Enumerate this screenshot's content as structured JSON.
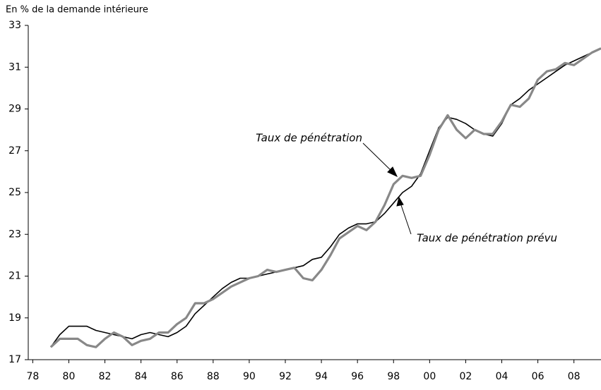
{
  "chart_data": {
    "type": "line",
    "ylabel": "En % de la demande intérieure",
    "x": [
      1979,
      1979.5,
      1980,
      1980.5,
      1981,
      1981.5,
      1982,
      1982.5,
      1983,
      1983.5,
      1984,
      1984.5,
      1985,
      1985.5,
      1986,
      1986.5,
      1987,
      1987.5,
      1988,
      1988.5,
      1989,
      1989.5,
      1990,
      1990.5,
      1991,
      1991.5,
      1992,
      1992.5,
      1993,
      1993.5,
      1994,
      1994.5,
      1995,
      1995.5,
      1996,
      1996.5,
      1997,
      1997.5,
      1998,
      1998.5,
      1999,
      1999.5,
      2000,
      2000.5,
      2001,
      2001.5,
      2002,
      2002.5,
      2003,
      2003.5,
      2004,
      2004.5,
      2005,
      2005.5,
      2006,
      2006.5,
      2007,
      2007.5,
      2008,
      2008.5,
      2009,
      2009.5
    ],
    "series": [
      {
        "name": "Taux de pénétration prévu",
        "color": "#000000",
        "values": [
          17.6,
          18.2,
          18.6,
          18.6,
          18.6,
          18.4,
          18.3,
          18.2,
          18.1,
          18.0,
          18.2,
          18.3,
          18.2,
          18.1,
          18.3,
          18.6,
          19.2,
          19.6,
          20.0,
          20.4,
          20.7,
          20.9,
          20.9,
          21.0,
          21.1,
          21.2,
          21.3,
          21.4,
          21.5,
          21.8,
          21.9,
          22.4,
          23.0,
          23.3,
          23.5,
          23.5,
          23.6,
          24.0,
          24.5,
          25.0,
          25.3,
          25.9,
          27.0,
          28.1,
          28.6,
          28.5,
          28.3,
          28.0,
          27.8,
          27.7,
          28.3,
          29.2,
          29.5,
          29.9,
          30.2,
          30.5,
          30.8,
          31.1,
          31.3,
          31.5,
          31.7,
          31.9
        ]
      },
      {
        "name": "Taux de pénétration",
        "color": "#888888",
        "values": [
          17.6,
          18.0,
          18.0,
          18.0,
          17.7,
          17.6,
          18.0,
          18.3,
          18.1,
          17.7,
          17.9,
          18.0,
          18.3,
          18.3,
          18.7,
          19.0,
          19.7,
          19.7,
          19.9,
          20.2,
          20.5,
          20.7,
          20.9,
          21.0,
          21.3,
          21.2,
          21.3,
          21.4,
          20.9,
          20.8,
          21.3,
          22.0,
          22.8,
          23.1,
          23.4,
          23.2,
          23.6,
          24.4,
          25.4,
          25.8,
          25.7,
          25.8,
          26.8,
          28.0,
          28.7,
          28.0,
          27.6,
          28.0,
          27.8,
          27.8,
          28.4,
          29.2,
          29.1,
          29.5,
          30.4,
          30.8,
          30.9,
          31.2,
          31.1,
          31.4,
          31.7,
          31.9
        ]
      }
    ],
    "xlim": [
      1977.75,
      2009.5
    ],
    "xticks": [
      {
        "value": 1978,
        "label": "78"
      },
      {
        "value": 1980,
        "label": "80"
      },
      {
        "value": 1982,
        "label": "82"
      },
      {
        "value": 1984,
        "label": "84"
      },
      {
        "value": 1986,
        "label": "86"
      },
      {
        "value": 1988,
        "label": "88"
      },
      {
        "value": 1990,
        "label": "90"
      },
      {
        "value": 1992,
        "label": "92"
      },
      {
        "value": 1994,
        "label": "94"
      },
      {
        "value": 1996,
        "label": "96"
      },
      {
        "value": 1998,
        "label": "98"
      },
      {
        "value": 2000,
        "label": "00"
      },
      {
        "value": 2002,
        "label": "02"
      },
      {
        "value": 2004,
        "label": "04"
      },
      {
        "value": 2006,
        "label": "06"
      },
      {
        "value": 2008,
        "label": "08"
      }
    ],
    "ylim": [
      17,
      33
    ],
    "yticks": [
      17,
      19,
      21,
      23,
      25,
      27,
      29,
      31,
      33
    ],
    "grid": false
  }
}
